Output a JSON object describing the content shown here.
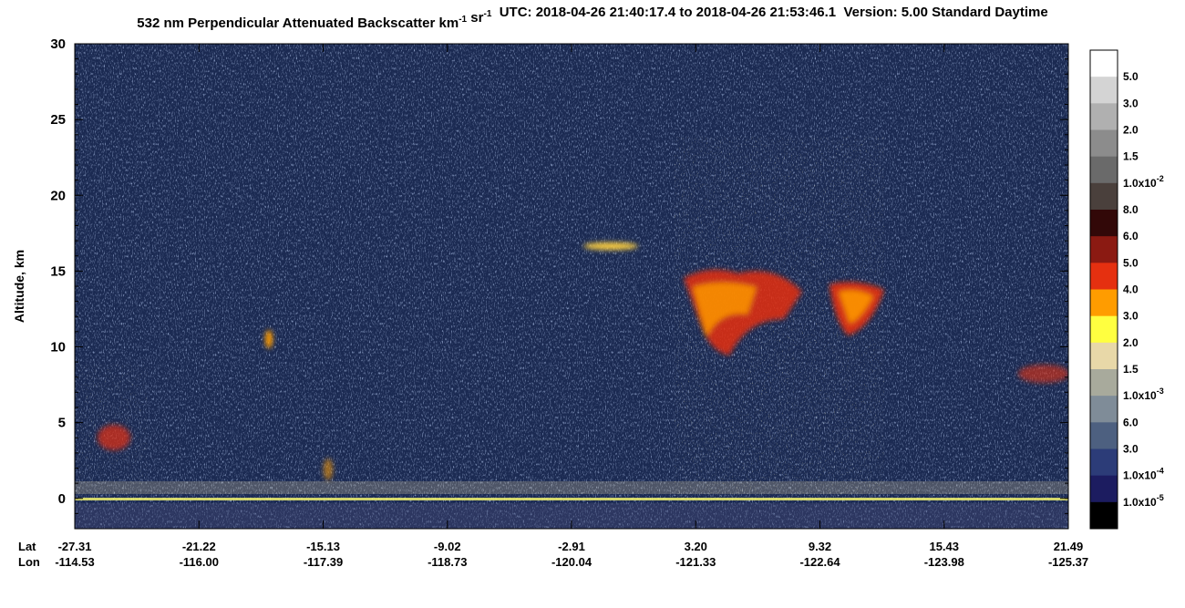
{
  "chart_data": {
    "type": "heatmap",
    "title_parts": [
      {
        "text": "532 nm Perpendicular Attenuated Backscatter km"
      },
      {
        "text": "-1",
        "sup": true
      },
      {
        "text": " sr"
      },
      {
        "text": "-1",
        "sup": true
      },
      {
        "text": "  UTC: 2018-04-26 21:40:17.4 to 2018-04-26 21:53:46.1  Version: 5.00 Standard Daytime"
      }
    ],
    "y_label": "Altitude, km",
    "ylim": [
      -2,
      30
    ],
    "yticks": [
      0,
      5,
      10,
      15,
      20,
      25,
      30
    ],
    "x_rows": [
      {
        "name": "Lat",
        "labels": [
          "-27.31",
          "-21.22",
          "-15.13",
          "-9.02",
          "-2.91",
          "3.20",
          "9.32",
          "15.43",
          "21.49"
        ]
      },
      {
        "name": "Lon",
        "labels": [
          "-114.53",
          "-116.00",
          "-117.39",
          "-118.73",
          "-120.04",
          "-121.33",
          "-122.64",
          "-123.98",
          "-125.37"
        ]
      }
    ],
    "colorbar": {
      "colors": [
        "#ffffff",
        "#d4d4d4",
        "#b0b0b0",
        "#8c8c8c",
        "#6a6a6a",
        "#4a403c",
        "#320808",
        "#8b1a12",
        "#e53010",
        "#ff9c00",
        "#ffff40",
        "#e8d8a8",
        "#a8aa9c",
        "#7f8c98",
        "#4d6080",
        "#2c3c78",
        "#1c1c60",
        "#000000"
      ],
      "labels": [
        {
          "text": "5.0"
        },
        {
          "text": "3.0"
        },
        {
          "text": "2.0"
        },
        {
          "text": "1.5"
        },
        {
          "text": "1.0x10",
          "sup": "-2"
        },
        {
          "text": "8.0"
        },
        {
          "text": "6.0"
        },
        {
          "text": "5.0"
        },
        {
          "text": "4.0"
        },
        {
          "text": "3.0"
        },
        {
          "text": "2.0"
        },
        {
          "text": "1.5"
        },
        {
          "text": "1.0x10",
          "sup": "-3"
        },
        {
          "text": "6.0"
        },
        {
          "text": "3.0"
        },
        {
          "text": "1.0x10",
          "sup": "-4"
        },
        {
          "text": "1.0x10",
          "sup": "-5"
        }
      ]
    }
  }
}
